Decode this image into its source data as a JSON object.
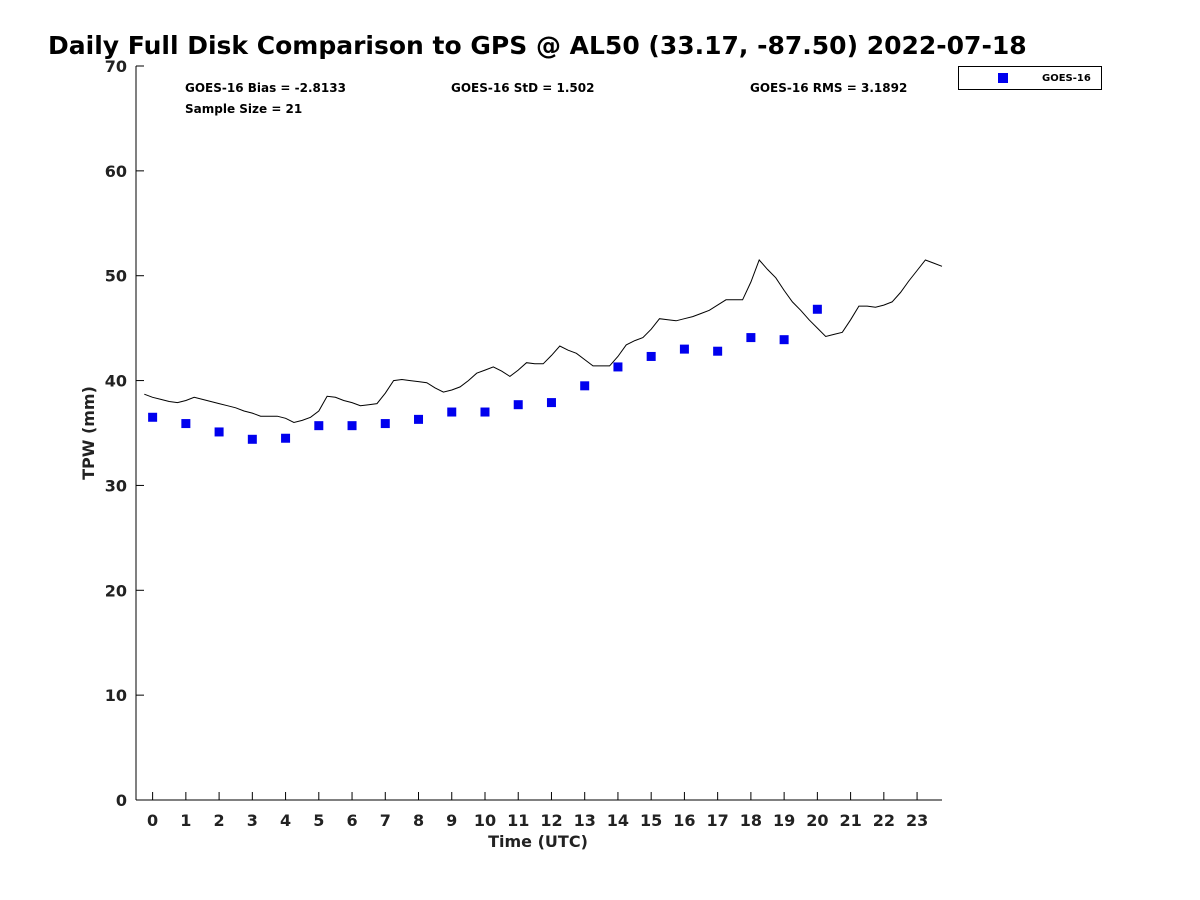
{
  "chart_data": {
    "type": "scatter",
    "title": "Daily Full Disk Comparison to GPS @ AL50 (33.17, -87.50) 2022-07-18",
    "xlabel": "Time (UTC)",
    "ylabel": "TPW (mm)",
    "xlim": [
      -0.5,
      23.75
    ],
    "ylim": [
      0,
      70
    ],
    "x_ticks": [
      0,
      1,
      2,
      3,
      4,
      5,
      6,
      7,
      8,
      9,
      10,
      11,
      12,
      13,
      14,
      15,
      16,
      17,
      18,
      19,
      20,
      21,
      22,
      23
    ],
    "y_ticks": [
      0,
      10,
      20,
      30,
      40,
      50,
      60,
      70
    ],
    "grid": false,
    "legend_position": "top-right",
    "stats": {
      "bias": "GOES-16 Bias = -2.8133",
      "std": "GOES-16 StD = 1.502",
      "rms": "GOES-16 RMS = 3.1892",
      "sample": "Sample Size = 21"
    },
    "series": [
      {
        "name": "GOES-16",
        "kind": "markers",
        "color": "#0000ee",
        "x": [
          0,
          1,
          2,
          3,
          4,
          5,
          6,
          7,
          8,
          9,
          10,
          11,
          12,
          13,
          14,
          15,
          16,
          17,
          18,
          19,
          20
        ],
        "y": [
          36.5,
          35.9,
          35.1,
          34.4,
          34.5,
          35.7,
          35.7,
          35.9,
          36.3,
          37.0,
          37.0,
          37.7,
          37.9,
          39.5,
          41.3,
          42.3,
          43.0,
          42.8,
          44.1,
          43.9,
          46.8
        ]
      },
      {
        "kind": "line",
        "color": "#000000",
        "x": [
          -0.25,
          0,
          0.25,
          0.5,
          0.75,
          1,
          1.25,
          1.5,
          1.75,
          2,
          2.25,
          2.5,
          2.75,
          3,
          3.25,
          3.5,
          3.75,
          4,
          4.25,
          4.5,
          4.75,
          5,
          5.25,
          5.5,
          5.75,
          6,
          6.25,
          6.5,
          6.75,
          7,
          7.25,
          7.5,
          7.75,
          8,
          8.25,
          8.5,
          8.75,
          9,
          9.25,
          9.5,
          9.75,
          10,
          10.25,
          10.5,
          10.75,
          11,
          11.25,
          11.5,
          11.75,
          12,
          12.25,
          12.5,
          12.75,
          13,
          13.25,
          13.5,
          13.75,
          14,
          14.25,
          14.5,
          14.75,
          15,
          15.25,
          15.5,
          15.75,
          16,
          16.25,
          16.5,
          16.75,
          17,
          17.25,
          17.5,
          17.75,
          18,
          18.25,
          18.5,
          18.75,
          19,
          19.25,
          19.5,
          19.75,
          20,
          20.25,
          20.5,
          20.75,
          21,
          21.25,
          21.5,
          21.75,
          22,
          22.25,
          22.5,
          22.75,
          23,
          23.25,
          23.5,
          23.75
        ],
        "y": [
          38.7,
          38.4,
          38.2,
          38.0,
          37.9,
          38.1,
          38.4,
          38.2,
          38.0,
          37.8,
          37.6,
          37.4,
          37.1,
          36.9,
          36.6,
          36.6,
          36.6,
          36.4,
          36.0,
          36.2,
          36.5,
          37.1,
          38.5,
          38.4,
          38.1,
          37.9,
          37.6,
          37.7,
          37.8,
          38.8,
          40.0,
          40.1,
          40.0,
          39.9,
          39.8,
          39.3,
          38.9,
          39.1,
          39.4,
          40.0,
          40.7,
          41.0,
          41.3,
          40.9,
          40.4,
          41.0,
          41.7,
          41.6,
          41.6,
          42.4,
          43.3,
          42.9,
          42.6,
          42.0,
          41.4,
          41.4,
          41.4,
          42.3,
          43.4,
          43.8,
          44.1,
          44.9,
          45.9,
          45.8,
          45.7,
          45.9,
          46.1,
          46.4,
          46.7,
          47.2,
          47.7,
          47.7,
          47.7,
          49.4,
          51.5,
          50.6,
          49.8,
          48.6,
          47.5,
          46.7,
          45.8,
          45.0,
          44.2,
          44.4,
          44.6,
          45.8,
          47.1,
          47.1,
          47.0,
          47.2,
          47.5,
          48.4,
          49.5,
          50.5,
          51.5,
          51.2,
          50.9
        ]
      }
    ]
  }
}
